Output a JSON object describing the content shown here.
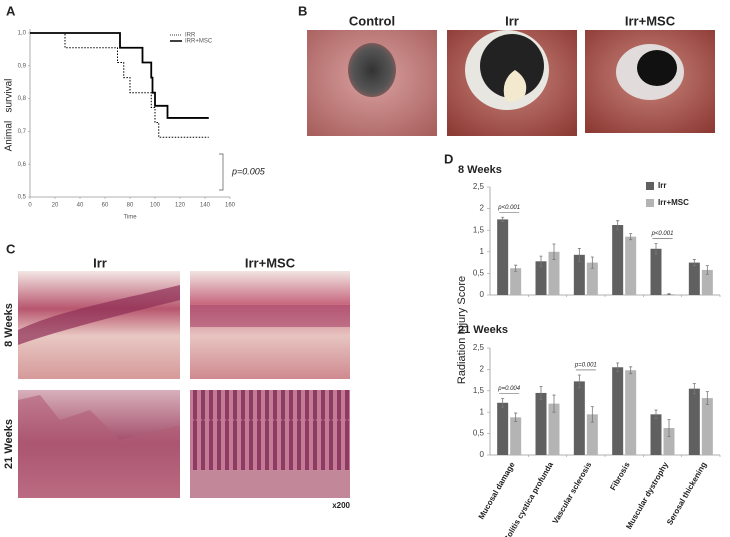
{
  "panel_labels": [
    "A",
    "B",
    "C",
    "D"
  ],
  "chart_data": [
    {
      "type": "step",
      "xlabel": "Time",
      "ylabel": "Animal   survival",
      "xlim": [
        0,
        160
      ],
      "ylim": [
        0.5,
        1.0
      ],
      "xticks": [
        0,
        20,
        40,
        60,
        80,
        100,
        120,
        140,
        160
      ],
      "yticks": [
        {
          "value": 0.5,
          "label": "0,5"
        },
        {
          "value": 0.6,
          "label": "0,6"
        },
        {
          "value": 0.7,
          "label": "0,7"
        },
        {
          "value": 0.8,
          "label": "0,8"
        },
        {
          "value": 0.9,
          "label": "0,9"
        },
        {
          "value": 1.0,
          "label": "1,0"
        }
      ],
      "annotation": "p=0.005",
      "series": [
        {
          "name": "IRR",
          "color": "#000000",
          "line_style": "dotted",
          "x": [
            0,
            28,
            70,
            75,
            80,
            97,
            100,
            103,
            143
          ],
          "values": [
            1.0,
            0.955,
            0.91,
            0.864,
            0.818,
            0.773,
            0.727,
            0.682,
            0.682
          ]
        },
        {
          "name": "IRR+MSC",
          "color": "#000000",
          "line_style": "solid",
          "x": [
            0,
            72,
            90,
            97,
            98,
            100,
            110,
            143
          ],
          "values": [
            1.0,
            0.955,
            0.91,
            0.864,
            0.818,
            0.778,
            0.741,
            0.741
          ]
        }
      ]
    },
    {
      "type": "bar",
      "title": "8 Weeks",
      "categories": [
        null,
        null,
        null,
        null,
        null,
        null
      ],
      "ylim": [
        0,
        2.5
      ],
      "yticks": [
        0,
        {
          "value": 0.5,
          "label": "0,5"
        },
        1,
        {
          "value": 1.5,
          "label": "1,5"
        },
        2,
        {
          "value": 2.5,
          "label": "2,5"
        }
      ],
      "annotations": [
        "p<0.001",
        "p<0.001"
      ],
      "series": [
        {
          "name": "Irr",
          "color": "#606060",
          "values": [
            1.75,
            0.78,
            0.93,
            1.62,
            1.07,
            0.75
          ],
          "errors": [
            0.05,
            0.12,
            0.15,
            0.1,
            0.12,
            0.07
          ]
        },
        {
          "name": "Irr+MSC",
          "color": "#b4b4b4",
          "values": [
            0.62,
            1.0,
            0.75,
            1.35,
            0.02,
            0.58
          ],
          "errors": [
            0.07,
            0.18,
            0.13,
            0.07,
            0.01,
            0.1
          ]
        }
      ]
    },
    {
      "type": "bar",
      "title": "21 Weeks",
      "categories": [
        "Mucosal damage",
        "Colitis cystica profunda",
        "Vascular sclerosis",
        "Fibrosis",
        "Muscular dystrophy",
        "Serosal thickening"
      ],
      "ylim": [
        0,
        2.5
      ],
      "yticks": [
        0,
        {
          "value": 0.5,
          "label": "0,5"
        },
        1,
        {
          "value": 1.5,
          "label": "1,5"
        },
        2,
        {
          "value": 2.5,
          "label": "2,5"
        }
      ],
      "annotations": [
        "p=0.004",
        "p=0.001"
      ],
      "series": [
        {
          "color": "#606060",
          "values": [
            1.22,
            1.45,
            1.72,
            2.05,
            0.95,
            1.55
          ],
          "errors": [
            0.1,
            0.15,
            0.15,
            0.1,
            0.1,
            0.12
          ]
        },
        {
          "color": "#b4b4b4",
          "values": [
            0.88,
            1.2,
            0.95,
            1.98,
            0.63,
            1.33
          ],
          "errors": [
            0.1,
            0.2,
            0.18,
            0.08,
            0.2,
            0.15
          ]
        }
      ]
    }
  ],
  "panel_b": {
    "labels": [
      "Control",
      "Irr",
      "Irr+MSC"
    ]
  },
  "panel_c": {
    "columns": [
      "Irr",
      "Irr+MSC"
    ],
    "rows": [
      "8 Weeks",
      "21 Weeks"
    ],
    "magnification": "x200"
  },
  "panel_d": {
    "ylabel": "Radiation Injury Score"
  }
}
